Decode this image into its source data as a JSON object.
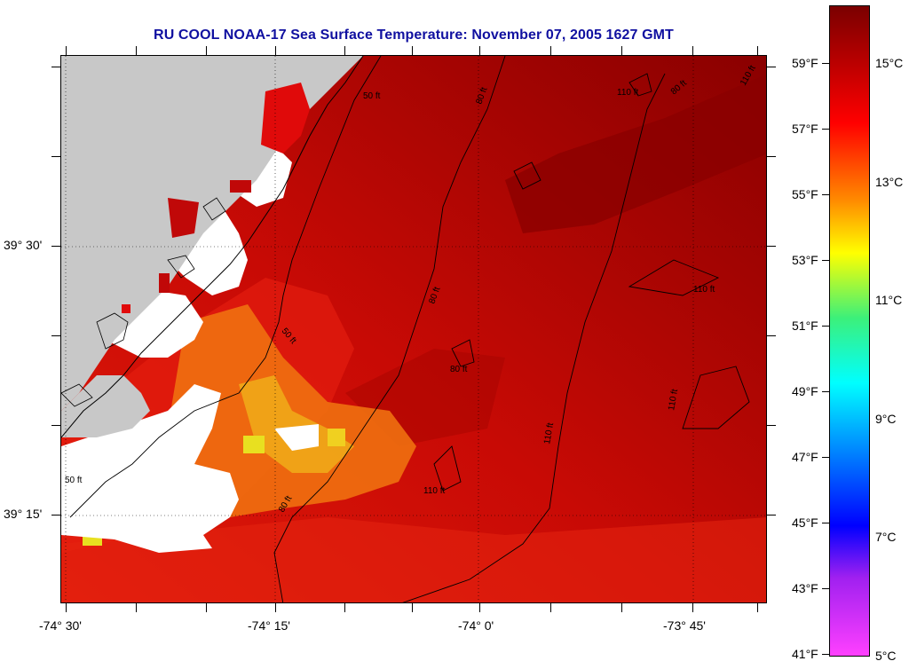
{
  "title": "RU COOL  NOAA-17  Sea Surface Temperature:  November 07, 2005 1627 GMT",
  "x_tick_labels": [
    "-74° 30'",
    "-74° 15'",
    "-74° 0'",
    "-73° 45'"
  ],
  "y_tick_labels": [
    "39° 30'",
    "39° 15'"
  ],
  "depth_contour_labels": [
    "50 ft",
    "80 ft",
    "110 ft"
  ],
  "colorbar": {
    "fahrenheit_labels": [
      "59°F",
      "57°F",
      "55°F",
      "53°F",
      "51°F",
      "49°F",
      "47°F",
      "45°F",
      "43°F",
      "41°F"
    ],
    "celsius_labels": [
      "15°C",
      "13°C",
      "11°C",
      "9°C",
      "7°C",
      "5°C"
    ],
    "colors": {
      "top": "#7a0000",
      "red": "#ff0000",
      "orange": "#ff8c00",
      "yellow": "#ffff00",
      "green": "#3cf07a",
      "cyan": "#00ffff",
      "blue": "#0000ff",
      "purple": "#a020f0",
      "magenta": "#ff40ff"
    }
  },
  "colors": {
    "land": "#c8c8c8",
    "no_data": "#ffffff",
    "title": "#1010a0",
    "sst_dark": "#8a0000",
    "sst_mid": "#c80a05",
    "sst_red": "#e81208",
    "sst_orange": "#f07010",
    "sst_yellow": "#e8e020"
  }
}
